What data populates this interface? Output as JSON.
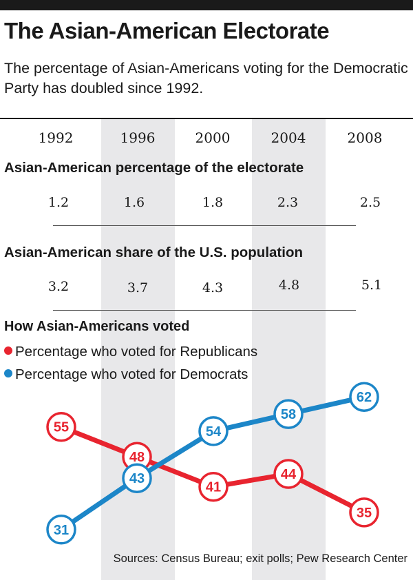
{
  "title": "The Asian-American Electorate",
  "subtitle": "The percentage of Asian-Americans voting for the Democratic Party has doubled since 1992.",
  "years": [
    "1992",
    "1996",
    "2000",
    "2004",
    "2008"
  ],
  "electorate": {
    "heading": "Asian-American percentage of the electorate",
    "values": [
      "1.2",
      "1.6",
      "1.8",
      "2.3",
      "2.5"
    ]
  },
  "population": {
    "heading": "Asian-American share of the U.S. population",
    "values": [
      "3.2",
      "3.7",
      "4.3",
      "4.8",
      "5.1"
    ]
  },
  "votes": {
    "heading": "How Asian-Americans voted",
    "legend_republicans": "Percentage who voted for Republicans",
    "legend_democrats": "Percentage who voted for Democrats"
  },
  "colors": {
    "republican": "#e8242f",
    "democrat": "#1c86c8",
    "band": "#e8e8ea"
  },
  "chart_data": {
    "type": "line",
    "x": [
      1992,
      1996,
      2000,
      2004,
      2008
    ],
    "series": [
      {
        "name": "Percentage who voted for Republicans",
        "values": [
          55,
          48,
          41,
          44,
          35
        ]
      },
      {
        "name": "Percentage who voted for Democrats",
        "values": [
          31,
          43,
          54,
          58,
          62
        ]
      }
    ],
    "ylim": [
      30,
      63
    ],
    "grid": false
  },
  "source": "Sources: Census Bureau; exit polls; Pew Research Center"
}
